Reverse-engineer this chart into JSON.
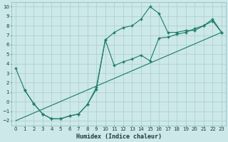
{
  "xlabel": "Humidex (Indice chaleur)",
  "bg_color": "#cce8e8",
  "grid_color": "#aacccc",
  "line_color": "#1a7a6a",
  "xlim": [
    -0.5,
    23.5
  ],
  "ylim": [
    -2.5,
    10.5
  ],
  "xticks": [
    0,
    1,
    2,
    3,
    4,
    5,
    6,
    7,
    8,
    9,
    10,
    11,
    12,
    13,
    14,
    15,
    16,
    17,
    18,
    19,
    20,
    21,
    22,
    23
  ],
  "yticks": [
    -2,
    -1,
    0,
    1,
    2,
    3,
    4,
    5,
    6,
    7,
    8,
    9,
    10
  ],
  "line1_x": [
    0,
    1,
    2,
    3,
    4,
    5,
    6,
    7,
    8,
    9,
    10,
    11,
    12,
    13,
    14,
    15,
    16,
    17,
    18,
    19,
    20,
    21,
    22,
    23
  ],
  "line1_y": [
    3.5,
    1.2,
    -0.2,
    -1.3,
    -1.8,
    -1.8,
    -1.5,
    -1.3,
    -0.3,
    1.3,
    6.5,
    3.8,
    4.2,
    4.5,
    4.9,
    4.3,
    6.7,
    6.8,
    7.1,
    7.3,
    7.7,
    8.0,
    8.5,
    7.3
  ],
  "line2_x": [
    1,
    2,
    3,
    4,
    5,
    6,
    7,
    8,
    9,
    10,
    11,
    12,
    13,
    14,
    15,
    16,
    17,
    18,
    19,
    20,
    21,
    22,
    23
  ],
  "line2_y": [
    1.2,
    -0.2,
    -1.3,
    -1.8,
    -1.8,
    -1.5,
    -1.3,
    -0.3,
    1.5,
    6.5,
    7.3,
    7.8,
    8.0,
    8.7,
    10.0,
    9.3,
    7.3,
    7.3,
    7.5,
    7.5,
    8.0,
    8.7,
    7.3
  ],
  "line3_x": [
    0,
    23
  ],
  "line3_y": [
    -2.0,
    7.3
  ]
}
